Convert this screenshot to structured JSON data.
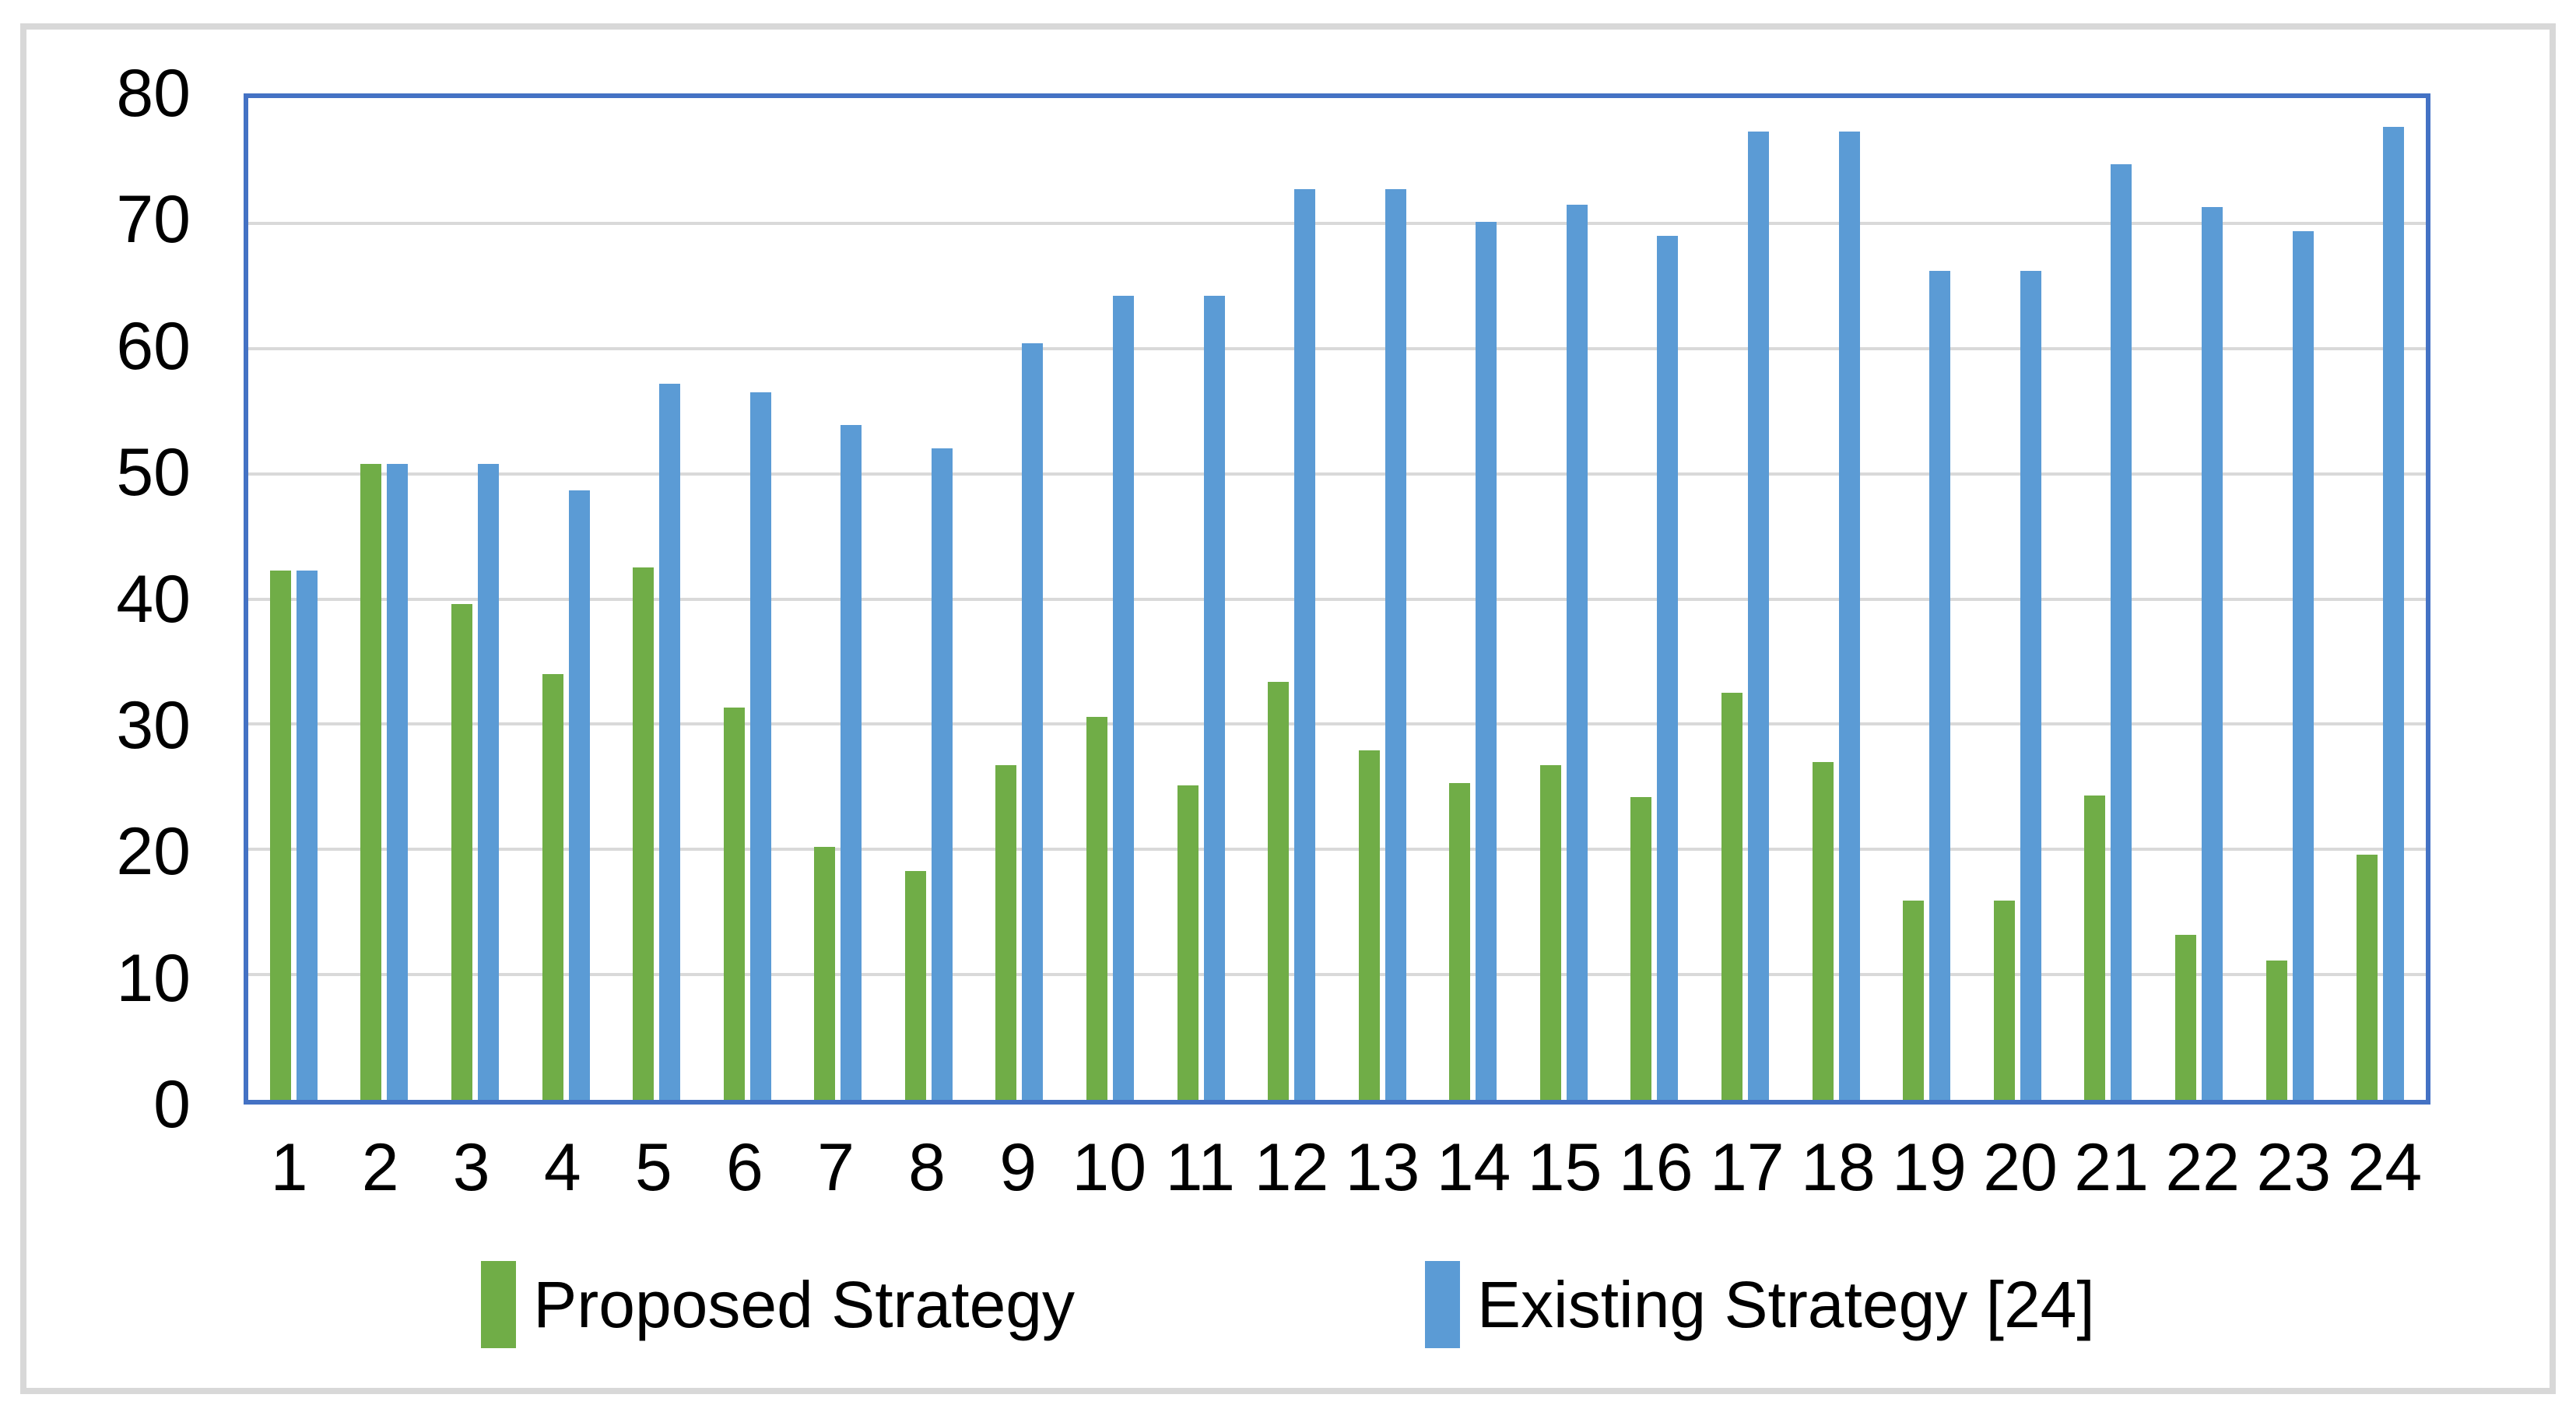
{
  "figure": {
    "background": "#FFFFFF",
    "outer_border_color": "#D8D8D8"
  },
  "chart_data": {
    "type": "bar",
    "title": "",
    "xlabel": "",
    "ylabel": "",
    "categories": [
      "1",
      "2",
      "3",
      "4",
      "5",
      "6",
      "7",
      "8",
      "9",
      "10",
      "11",
      "12",
      "13",
      "14",
      "15",
      "16",
      "17",
      "18",
      "19",
      "20",
      "21",
      "22",
      "23",
      "24"
    ],
    "series": [
      {
        "name": "Proposed Strategy",
        "color": "#70AD47",
        "values": [
          42.3,
          50.8,
          39.6,
          34.0,
          42.5,
          31.3,
          20.2,
          18.3,
          26.7,
          30.6,
          25.1,
          33.4,
          27.9,
          25.3,
          26.7,
          24.2,
          32.5,
          27.0,
          15.9,
          15.9,
          24.3,
          13.2,
          11.1,
          19.6
        ]
      },
      {
        "name": "Existing Strategy [24]",
        "color": "#5B9BD5",
        "values": [
          42.3,
          50.8,
          50.8,
          48.7,
          57.2,
          56.5,
          53.9,
          52.0,
          60.4,
          64.2,
          64.2,
          72.7,
          72.7,
          70.1,
          71.5,
          69.0,
          77.3,
          77.3,
          66.2,
          66.2,
          74.7,
          71.3,
          69.4,
          77.7
        ]
      }
    ],
    "ylim": [
      0,
      80
    ],
    "yticks": [
      0,
      10,
      20,
      30,
      40,
      50,
      60,
      70,
      80
    ],
    "grid": "horizontal",
    "gridline_color": "#D9D9D9",
    "axis_border_color": "#4472C4",
    "legend_position": "bottom"
  }
}
